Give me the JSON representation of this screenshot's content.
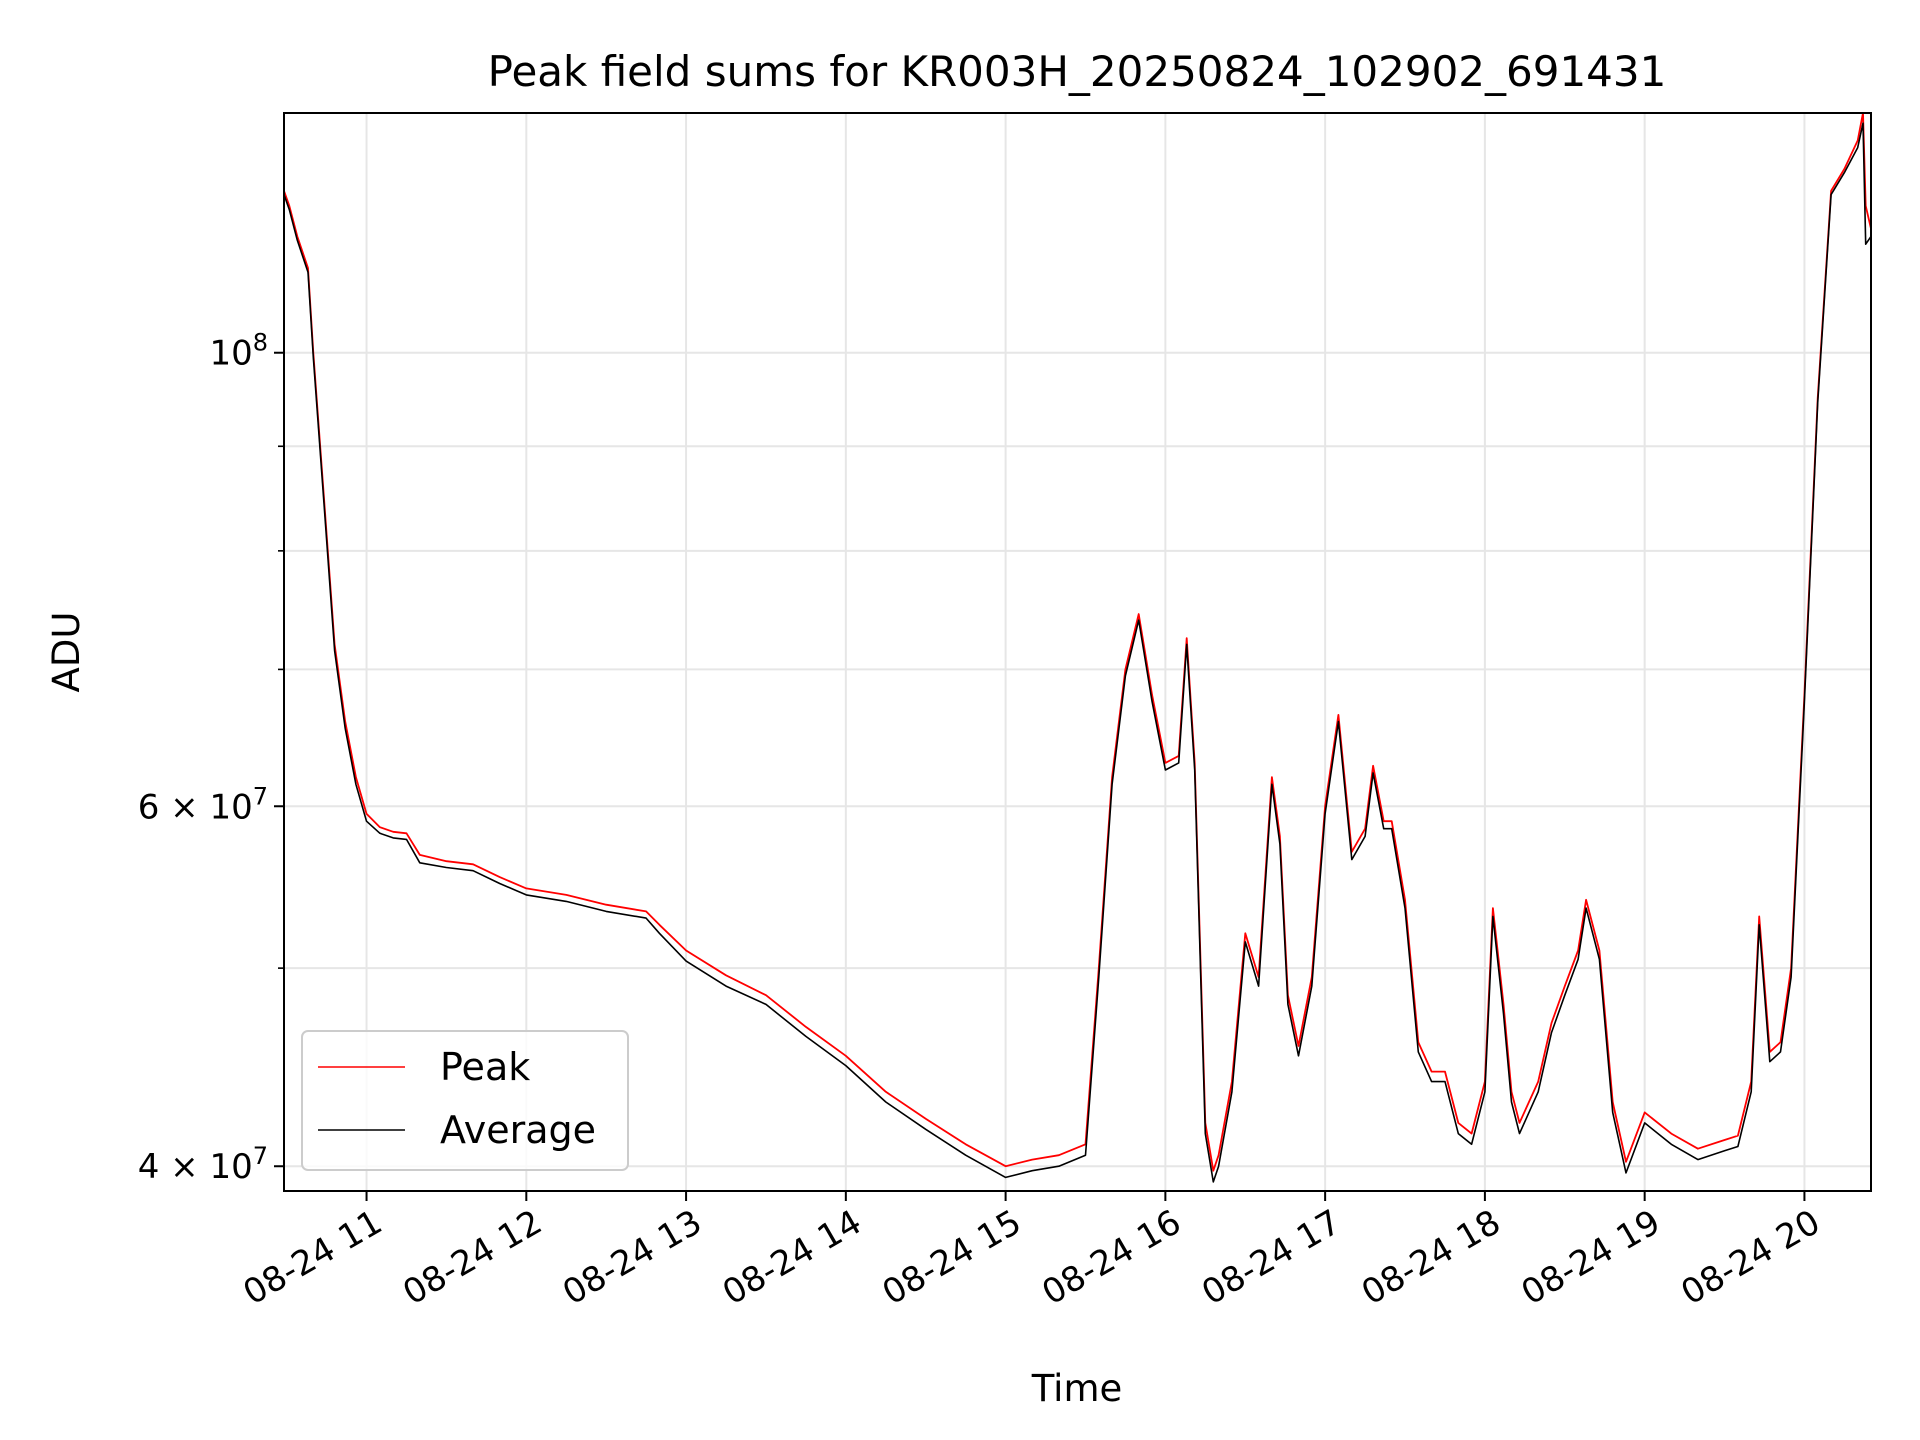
{
  "chart_data": {
    "type": "line",
    "title": "Peak field sums for KR003H_20250824_102902_691431",
    "xlabel": "Time",
    "ylabel": "ADU",
    "y_scale": "log",
    "ylim": [
      38900000,
      131000000
    ],
    "xlim": [
      "2025-08-24 10:29",
      "2025-08-24 20:25"
    ],
    "x_ticks": [
      {
        "t": "2025-08-24 11:00",
        "label": "08-24 11"
      },
      {
        "t": "2025-08-24 12:00",
        "label": "08-24 12"
      },
      {
        "t": "2025-08-24 13:00",
        "label": "08-24 13"
      },
      {
        "t": "2025-08-24 14:00",
        "label": "08-24 14"
      },
      {
        "t": "2025-08-24 15:00",
        "label": "08-24 15"
      },
      {
        "t": "2025-08-24 16:00",
        "label": "08-24 16"
      },
      {
        "t": "2025-08-24 17:00",
        "label": "08-24 17"
      },
      {
        "t": "2025-08-24 18:00",
        "label": "08-24 18"
      },
      {
        "t": "2025-08-24 19:00",
        "label": "08-24 19"
      },
      {
        "t": "2025-08-24 20:00",
        "label": "08-24 20"
      }
    ],
    "y_major_ticks": [
      {
        "value": 100000000,
        "base": "10",
        "exp": "8"
      },
      {
        "value": 60000000,
        "base": "6 × 10",
        "exp": "7"
      },
      {
        "value": 40000000,
        "base": "4 × 10",
        "exp": "7"
      }
    ],
    "y_minor_ticks": [
      50000000,
      70000000,
      80000000,
      90000000
    ],
    "grid": true,
    "legend_position": "lower-left",
    "series": [
      {
        "name": "Peak",
        "color": "#ff0000",
        "x": [
          "2025-08-24 10:29",
          "2025-08-24 10:31",
          "2025-08-24 10:34",
          "2025-08-24 10:38",
          "2025-08-24 10:40",
          "2025-08-24 10:44",
          "2025-08-24 10:48",
          "2025-08-24 10:52",
          "2025-08-24 10:56",
          "2025-08-24 11:00",
          "2025-08-24 11:05",
          "2025-08-24 11:10",
          "2025-08-24 11:15",
          "2025-08-24 11:20",
          "2025-08-24 11:30",
          "2025-08-24 11:40",
          "2025-08-24 11:50",
          "2025-08-24 12:00",
          "2025-08-24 12:15",
          "2025-08-24 12:30",
          "2025-08-24 12:45",
          "2025-08-24 12:50",
          "2025-08-24 13:00",
          "2025-08-24 13:15",
          "2025-08-24 13:30",
          "2025-08-24 13:45",
          "2025-08-24 14:00",
          "2025-08-24 14:15",
          "2025-08-24 14:30",
          "2025-08-24 14:45",
          "2025-08-24 15:00",
          "2025-08-24 15:10",
          "2025-08-24 15:20",
          "2025-08-24 15:30",
          "2025-08-24 15:35",
          "2025-08-24 15:40",
          "2025-08-24 15:45",
          "2025-08-24 15:50",
          "2025-08-24 15:55",
          "2025-08-24 16:00",
          "2025-08-24 16:05",
          "2025-08-24 16:08",
          "2025-08-24 16:11",
          "2025-08-24 16:15",
          "2025-08-24 16:18",
          "2025-08-24 16:20",
          "2025-08-24 16:25",
          "2025-08-24 16:30",
          "2025-08-24 16:35",
          "2025-08-24 16:40",
          "2025-08-24 16:43",
          "2025-08-24 16:46",
          "2025-08-24 16:50",
          "2025-08-24 16:55",
          "2025-08-24 17:00",
          "2025-08-24 17:05",
          "2025-08-24 17:10",
          "2025-08-24 17:15",
          "2025-08-24 17:18",
          "2025-08-24 17:22",
          "2025-08-24 17:25",
          "2025-08-24 17:30",
          "2025-08-24 17:35",
          "2025-08-24 17:40",
          "2025-08-24 17:45",
          "2025-08-24 17:50",
          "2025-08-24 17:55",
          "2025-08-24 18:00",
          "2025-08-24 18:03",
          "2025-08-24 18:07",
          "2025-08-24 18:10",
          "2025-08-24 18:13",
          "2025-08-24 18:20",
          "2025-08-24 18:25",
          "2025-08-24 18:30",
          "2025-08-24 18:35",
          "2025-08-24 18:38",
          "2025-08-24 18:43",
          "2025-08-24 18:48",
          "2025-08-24 18:53",
          "2025-08-24 19:00",
          "2025-08-24 19:10",
          "2025-08-24 19:20",
          "2025-08-24 19:30",
          "2025-08-24 19:35",
          "2025-08-24 19:40",
          "2025-08-24 19:43",
          "2025-08-24 19:47",
          "2025-08-24 19:51",
          "2025-08-24 19:55",
          "2025-08-24 20:00",
          "2025-08-24 20:05",
          "2025-08-24 20:10",
          "2025-08-24 20:15",
          "2025-08-24 20:20",
          "2025-08-24 20:22",
          "2025-08-24 20:23",
          "2025-08-24 20:25"
        ],
        "values": [
          120000000,
          118000000,
          114000000,
          110000000,
          100000000,
          85000000,
          72000000,
          66000000,
          62000000,
          59500000,
          58600000,
          58300000,
          58200000,
          56800000,
          56400000,
          56200000,
          55400000,
          54700000,
          54300000,
          53700000,
          53300000,
          52500000,
          51000000,
          49600000,
          48500000,
          46800000,
          45300000,
          43500000,
          42200000,
          41000000,
          40000000,
          40300000,
          40500000,
          41000000,
          50000000,
          62000000,
          70000000,
          74500000,
          68000000,
          63000000,
          63500000,
          72500000,
          63000000,
          42000000,
          39800000,
          40500000,
          44000000,
          52000000,
          49500000,
          62000000,
          58000000,
          48500000,
          45800000,
          49500000,
          60000000,
          66500000,
          57000000,
          58500000,
          62800000,
          59000000,
          59000000,
          54000000,
          46000000,
          44500000,
          44500000,
          42000000,
          41500000,
          44000000,
          53500000,
          48000000,
          43500000,
          42000000,
          44000000,
          47000000,
          49000000,
          51000000,
          54000000,
          51000000,
          43000000,
          40200000,
          42500000,
          41500000,
          40800000,
          41200000,
          41400000,
          44000000,
          53000000,
          45500000,
          46000000,
          50000000,
          68000000,
          95000000,
          120000000,
          123000000,
          127000000,
          131000000,
          118000000,
          115000000
        ]
      },
      {
        "name": "Average",
        "color": "#000000",
        "x": [
          "2025-08-24 10:29",
          "2025-08-24 10:31",
          "2025-08-24 10:34",
          "2025-08-24 10:38",
          "2025-08-24 10:40",
          "2025-08-24 10:44",
          "2025-08-24 10:48",
          "2025-08-24 10:52",
          "2025-08-24 10:56",
          "2025-08-24 11:00",
          "2025-08-24 11:05",
          "2025-08-24 11:10",
          "2025-08-24 11:15",
          "2025-08-24 11:20",
          "2025-08-24 11:30",
          "2025-08-24 11:40",
          "2025-08-24 11:50",
          "2025-08-24 12:00",
          "2025-08-24 12:15",
          "2025-08-24 12:30",
          "2025-08-24 12:45",
          "2025-08-24 12:50",
          "2025-08-24 13:00",
          "2025-08-24 13:15",
          "2025-08-24 13:30",
          "2025-08-24 13:45",
          "2025-08-24 14:00",
          "2025-08-24 14:15",
          "2025-08-24 14:30",
          "2025-08-24 14:45",
          "2025-08-24 15:00",
          "2025-08-24 15:10",
          "2025-08-24 15:20",
          "2025-08-24 15:30",
          "2025-08-24 15:35",
          "2025-08-24 15:40",
          "2025-08-24 15:45",
          "2025-08-24 15:50",
          "2025-08-24 15:55",
          "2025-08-24 16:00",
          "2025-08-24 16:05",
          "2025-08-24 16:08",
          "2025-08-24 16:11",
          "2025-08-24 16:15",
          "2025-08-24 16:18",
          "2025-08-24 16:20",
          "2025-08-24 16:25",
          "2025-08-24 16:30",
          "2025-08-24 16:35",
          "2025-08-24 16:40",
          "2025-08-24 16:43",
          "2025-08-24 16:46",
          "2025-08-24 16:50",
          "2025-08-24 16:55",
          "2025-08-24 17:00",
          "2025-08-24 17:05",
          "2025-08-24 17:10",
          "2025-08-24 17:15",
          "2025-08-24 17:18",
          "2025-08-24 17:22",
          "2025-08-24 17:25",
          "2025-08-24 17:30",
          "2025-08-24 17:35",
          "2025-08-24 17:40",
          "2025-08-24 17:45",
          "2025-08-24 17:50",
          "2025-08-24 17:55",
          "2025-08-24 18:00",
          "2025-08-24 18:03",
          "2025-08-24 18:07",
          "2025-08-24 18:10",
          "2025-08-24 18:13",
          "2025-08-24 18:20",
          "2025-08-24 18:25",
          "2025-08-24 18:30",
          "2025-08-24 18:35",
          "2025-08-24 18:38",
          "2025-08-24 18:43",
          "2025-08-24 18:48",
          "2025-08-24 18:53",
          "2025-08-24 19:00",
          "2025-08-24 19:10",
          "2025-08-24 19:20",
          "2025-08-24 19:30",
          "2025-08-24 19:35",
          "2025-08-24 19:40",
          "2025-08-24 19:43",
          "2025-08-24 19:47",
          "2025-08-24 19:51",
          "2025-08-24 19:55",
          "2025-08-24 20:00",
          "2025-08-24 20:05",
          "2025-08-24 20:10",
          "2025-08-24 20:15",
          "2025-08-24 20:20",
          "2025-08-24 20:22",
          "2025-08-24 20:23",
          "2025-08-24 20:25"
        ],
        "values": [
          119500000,
          117500000,
          113500000,
          109500000,
          99500000,
          84500000,
          71500000,
          65500000,
          61500000,
          59000000,
          58200000,
          57900000,
          57800000,
          56300000,
          56000000,
          55800000,
          55000000,
          54300000,
          53900000,
          53300000,
          52900000,
          52000000,
          50400000,
          49000000,
          48000000,
          46300000,
          44800000,
          43000000,
          41700000,
          40500000,
          39500000,
          39800000,
          40000000,
          40500000,
          49500000,
          61500000,
          69500000,
          74000000,
          67500000,
          62500000,
          63000000,
          72000000,
          62500000,
          41500000,
          39300000,
          40000000,
          43500000,
          51500000,
          49000000,
          61500000,
          57500000,
          48000000,
          45300000,
          49000000,
          59500000,
          66000000,
          56500000,
          58000000,
          62300000,
          58500000,
          58500000,
          53500000,
          45500000,
          44000000,
          44000000,
          41500000,
          41000000,
          43500000,
          53000000,
          47500000,
          43000000,
          41500000,
          43500000,
          46500000,
          48500000,
          50500000,
          53500000,
          50500000,
          42500000,
          39700000,
          42000000,
          41000000,
          40300000,
          40700000,
          40900000,
          43500000,
          52500000,
          45000000,
          45500000,
          49500000,
          67500000,
          94500000,
          119500000,
          122500000,
          126000000,
          129500000,
          113000000,
          114000000
        ]
      }
    ]
  }
}
